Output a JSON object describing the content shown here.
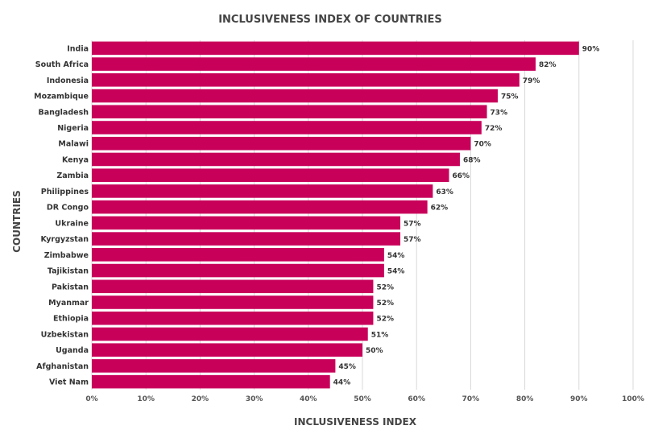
{
  "chart_data": {
    "type": "bar",
    "orientation": "horizontal",
    "title": "INCLUSIVENESS INDEX OF COUNTRIES",
    "xlabel": "INCLUSIVENESS INDEX",
    "ylabel": "COUNTRIES",
    "categories": [
      "India",
      "South Africa",
      "Indonesia",
      "Mozambique",
      "Bangladesh",
      "Nigeria",
      "Malawi",
      "Kenya",
      "Zambia",
      "Philippines",
      "DR Congo",
      "Ukraine",
      "Kyrgyzstan",
      "Zimbabwe",
      "Tajikistan",
      "Pakistan",
      "Myanmar",
      "Ethiopia",
      "Uzbekistan",
      "Uganda",
      "Afghanistan",
      "Viet Nam"
    ],
    "values": [
      90,
      82,
      79,
      75,
      73,
      72,
      70,
      68,
      66,
      63,
      62,
      57,
      57,
      54,
      54,
      52,
      52,
      52,
      51,
      50,
      45,
      44
    ],
    "value_labels": [
      "90%",
      "82%",
      "79%",
      "75%",
      "73%",
      "72%",
      "70%",
      "68%",
      "66%",
      "63%",
      "62%",
      "57%",
      "57%",
      "54%",
      "54%",
      "52%",
      "52%",
      "52%",
      "51%",
      "50%",
      "45%",
      "44%"
    ],
    "xlim": [
      0,
      100
    ],
    "x_ticks": [
      "0%",
      "10%",
      "20%",
      "30%",
      "40%",
      "50%",
      "60%",
      "70%",
      "80%",
      "90%",
      "100%"
    ],
    "grid": true,
    "bar_color": "#c8005a",
    "legend": "none"
  }
}
